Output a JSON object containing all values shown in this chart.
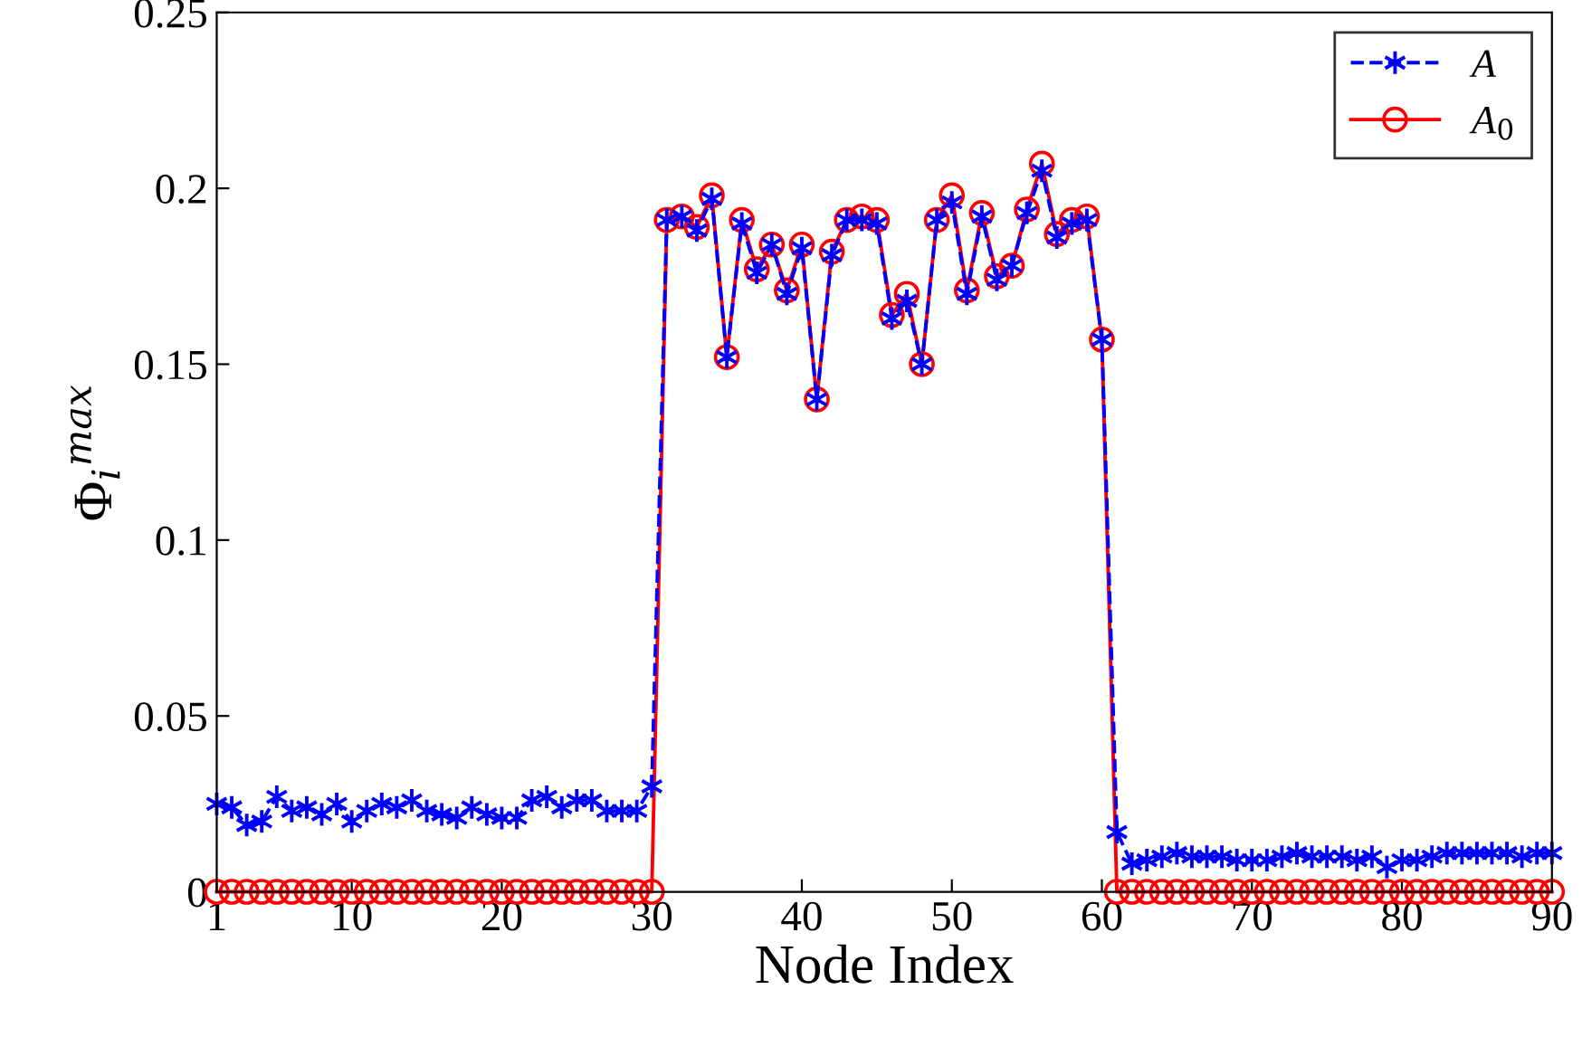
{
  "chart_data": {
    "type": "line",
    "xlabel": "Node Index",
    "ylabel": "Φ$_{i}$$^{max}$",
    "x": [
      1,
      2,
      3,
      4,
      5,
      6,
      7,
      8,
      9,
      10,
      11,
      12,
      13,
      14,
      15,
      16,
      17,
      18,
      19,
      20,
      21,
      22,
      23,
      24,
      25,
      26,
      27,
      28,
      29,
      30,
      31,
      32,
      33,
      34,
      35,
      36,
      37,
      38,
      39,
      40,
      41,
      42,
      43,
      44,
      45,
      46,
      47,
      48,
      49,
      50,
      51,
      52,
      53,
      54,
      55,
      56,
      57,
      58,
      59,
      60,
      61,
      62,
      63,
      64,
      65,
      66,
      67,
      68,
      69,
      70,
      71,
      72,
      73,
      74,
      75,
      76,
      77,
      78,
      79,
      80,
      81,
      82,
      83,
      84,
      85,
      86,
      87,
      88,
      89,
      90
    ],
    "xlim": [
      1,
      90
    ],
    "xticks": [
      1,
      10,
      20,
      30,
      40,
      50,
      60,
      70,
      80,
      90
    ],
    "ylim": [
      0,
      0.25
    ],
    "yticks": [
      0,
      0.05,
      0.1,
      0.15,
      0.2,
      0.25
    ],
    "grid": false,
    "legend": "top right",
    "series": [
      {
        "name": "A$_{0}$",
        "color": "#ff0000",
        "marker": "circle",
        "line_style": "solid",
        "values": [
          0,
          0,
          0,
          0,
          0,
          0,
          0,
          0,
          0,
          0,
          0,
          0,
          0,
          0,
          0,
          0,
          0,
          0,
          0,
          0,
          0,
          0,
          0,
          0,
          0,
          0,
          0,
          0,
          0,
          0,
          0.191,
          0.192,
          0.189,
          0.198,
          0.152,
          0.191,
          0.177,
          0.184,
          0.171,
          0.184,
          0.14,
          0.182,
          0.191,
          0.192,
          0.191,
          0.164,
          0.17,
          0.15,
          0.191,
          0.198,
          0.171,
          0.193,
          0.175,
          0.178,
          0.194,
          0.207,
          0.187,
          0.191,
          0.192,
          0.157,
          0,
          0,
          0,
          0,
          0,
          0,
          0,
          0,
          0,
          0,
          0,
          0,
          0,
          0,
          0,
          0,
          0,
          0,
          0,
          0,
          0,
          0,
          0,
          0,
          0,
          0,
          0,
          0,
          0,
          0
        ]
      },
      {
        "name": "A",
        "color": "#0000ff",
        "marker": "cross",
        "line_style": "dashed",
        "values": [
          0.025,
          0.024,
          0.019,
          0.02,
          0.027,
          0.023,
          0.024,
          0.022,
          0.025,
          0.02,
          0.023,
          0.025,
          0.024,
          0.026,
          0.023,
          0.022,
          0.021,
          0.024,
          0.022,
          0.021,
          0.021,
          0.026,
          0.027,
          0.024,
          0.026,
          0.026,
          0.023,
          0.023,
          0.023,
          0.03,
          0.191,
          0.192,
          0.188,
          0.197,
          0.152,
          0.19,
          0.176,
          0.184,
          0.17,
          0.183,
          0.14,
          0.181,
          0.191,
          0.191,
          0.19,
          0.163,
          0.168,
          0.15,
          0.191,
          0.196,
          0.17,
          0.192,
          0.174,
          0.178,
          0.193,
          0.205,
          0.186,
          0.19,
          0.191,
          0.157,
          0.017,
          0.008,
          0.009,
          0.01,
          0.011,
          0.01,
          0.01,
          0.01,
          0.009,
          0.009,
          0.009,
          0.01,
          0.011,
          0.01,
          0.01,
          0.01,
          0.009,
          0.01,
          0.007,
          0.009,
          0.009,
          0.01,
          0.011,
          0.011,
          0.011,
          0.011,
          0.011,
          0.01,
          0.011,
          0.011
        ]
      }
    ]
  }
}
